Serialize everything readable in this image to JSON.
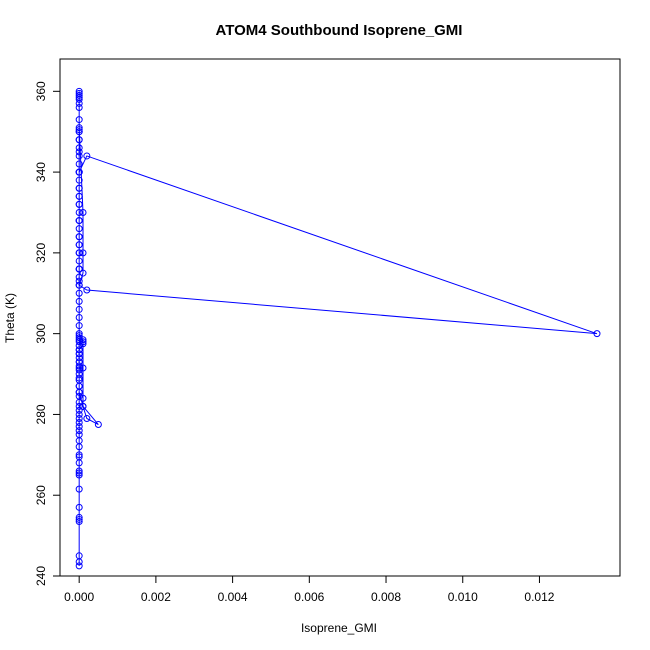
{
  "chart_data": {
    "type": "line",
    "title": "ATOM4 Southbound Isoprene_GMI",
    "xlabel": "Isoprene_GMI",
    "ylabel": "Theta (K)",
    "xlim": [
      -0.0005,
      0.0141
    ],
    "ylim": [
      240,
      368
    ],
    "xticks": [
      0.0,
      0.002,
      0.004,
      0.006,
      0.008,
      0.01,
      0.012
    ],
    "xtick_labels": [
      "0.000",
      "0.002",
      "0.004",
      "0.006",
      "0.008",
      "0.010",
      "0.012"
    ],
    "yticks": [
      240,
      260,
      280,
      300,
      320,
      340,
      360
    ],
    "ytick_labels": [
      "240",
      "260",
      "280",
      "300",
      "320",
      "340",
      "360"
    ],
    "grid": false,
    "series_color": "#0000ff",
    "series": [
      {
        "marker": "open-circle",
        "x": [
          0.0,
          0.0,
          0.0,
          0.0,
          0.0,
          0.0,
          0.0,
          0.0,
          0.0,
          0.0,
          0.0,
          0.0,
          0.0,
          0.0,
          0.0,
          0.0,
          0.0,
          0.0,
          0.0,
          0.0,
          0.0,
          0.0,
          0.0,
          0.0,
          0.0,
          0.0,
          0.0,
          0.0,
          0.0,
          0.0,
          0.0,
          0.0,
          0.0,
          0.0,
          0.0,
          0.0,
          0.0,
          0.0,
          0.0,
          0.0,
          0.0001,
          0.0001,
          0.0,
          0.0,
          0.0,
          0.0,
          0.0,
          0.0,
          0.0,
          0.0,
          0.0001,
          0.0002,
          0.0005,
          0.0001,
          0.0001,
          0.0001,
          0.0001,
          0.0,
          0.0,
          0.0,
          0.0,
          0.0,
          0.0,
          0.0,
          0.0,
          0.0,
          0.0,
          0.0,
          0.0,
          0.0,
          0.0,
          0.0,
          0.0,
          0.0,
          0.0,
          0.0,
          0.0,
          0.0,
          0.0,
          0.0,
          0.0,
          0.0,
          0.0,
          0.0,
          0.0,
          0.0001,
          0.0001,
          0.0001,
          0.0,
          0.0002,
          0.0135,
          0.0002,
          0.0,
          0.0,
          0.0,
          0.0,
          0.0,
          0.0,
          0.0,
          0.0,
          0.0,
          0.0,
          0.0,
          0.0,
          0.0,
          0.0,
          0.0,
          0.0,
          0.0,
          0.0,
          0.0,
          0.0,
          0.0,
          0.0,
          0.0,
          0.0
        ],
        "y": [
          242.5,
          243.5,
          245.0,
          253.5,
          254.0,
          254.5,
          257.0,
          261.5,
          265.0,
          265.5,
          266.0,
          268.0,
          269.5,
          270.0,
          272.0,
          273.5,
          275.0,
          276.0,
          277.0,
          278.0,
          279.0,
          280.0,
          281.0,
          282.0,
          283.0,
          284.5,
          285.5,
          287.0,
          288.5,
          290.0,
          291.5,
          293.0,
          294.0,
          295.0,
          296.0,
          297.0,
          298.0,
          298.5,
          299.0,
          299.5,
          298.5,
          297.5,
          296.0,
          295.0,
          293.0,
          292.0,
          291.0,
          289.0,
          287.0,
          285.5,
          282.0,
          279.0,
          277.5,
          282.0,
          284.0,
          291.5,
          298.0,
          300.0,
          302.0,
          304.0,
          306.0,
          308.0,
          310.0,
          312.0,
          314.0,
          316.0,
          318.0,
          320.0,
          322.0,
          324.0,
          326.0,
          328.0,
          330.0,
          332.0,
          334.0,
          336.0,
          338.0,
          340.0,
          342.0,
          344.0,
          346.0,
          348.0,
          350.0,
          350.5,
          351.0,
          330.0,
          320.0,
          315.0,
          312.0,
          310.8,
          300.0,
          344.0,
          340.0,
          336.0,
          332.0,
          328.0,
          324.0,
          320.0,
          316.0,
          313.0,
          316.0,
          322.0,
          328.0,
          334.0,
          340.0,
          345.0,
          348.0,
          350.0,
          353.0,
          356.0,
          357.0,
          358.0,
          358.5,
          359.0,
          359.5,
          360.0
        ]
      }
    ]
  }
}
